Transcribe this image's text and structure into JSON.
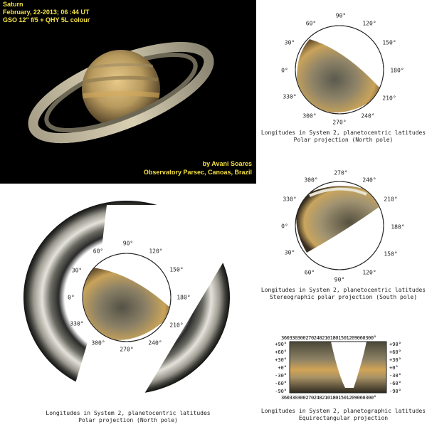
{
  "photo": {
    "title": "Saturn",
    "date": "February, 22-2013;  06 :44 UT",
    "equipment": "GSO 12\" f/5 + QHY 5L colour",
    "author": "by Avani Soares",
    "observatory": "Observatory Parsec, Canoas, Brazil"
  },
  "panels": {
    "north_polar_small": {
      "labels": [
        "90°",
        "120°",
        "150°",
        "180°",
        "210°",
        "240°",
        "270°",
        "300°",
        "330°",
        "0°",
        "30°",
        "60°"
      ],
      "caption1": "Longitudes in System 2, planetocentric latitudes",
      "caption2": "Polar projection (North pole)"
    },
    "south_stereo": {
      "labels": [
        "270°",
        "240°",
        "210°",
        "180°",
        "150°",
        "120°",
        "90°",
        "60°",
        "30°",
        "0°",
        "330°",
        "300°"
      ],
      "caption1": "Longitudes in System 2, planetocentric latitudes",
      "caption2": "Stereographic polar projection (South pole)"
    },
    "north_polar_large": {
      "labels": [
        "90°",
        "120°",
        "150°",
        "180°",
        "210°",
        "240°",
        "270°",
        "300°",
        "330°",
        "0°",
        "30°",
        "60°"
      ],
      "caption1": "Longitudes in System 2, planetocentric latitudes",
      "caption2": "Polar projection (North pole)"
    },
    "equirect": {
      "top_axis": "3603303002702402101801501209060300°",
      "lat_labels": [
        "+90°",
        "+60°",
        "+30°",
        "+0°",
        "-30°",
        "-60°",
        "-90°"
      ],
      "caption1": "Longitudes in System 2, planetographic latitudes",
      "caption2": "Equirectangular projection"
    }
  }
}
